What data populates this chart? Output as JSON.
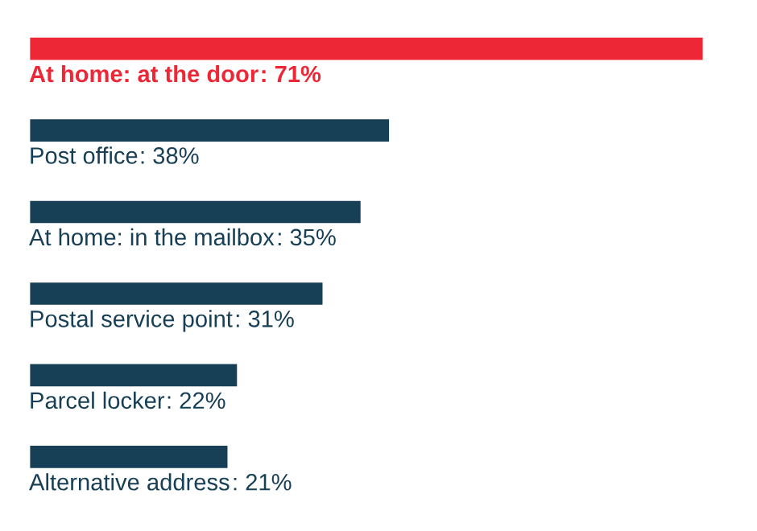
{
  "chart_data": {
    "type": "bar",
    "orientation": "horizontal",
    "categories": [
      "At home: at the door",
      "Post office",
      "At home: in the mailbox",
      "Postal service point",
      "Parcel locker",
      "Alternative address"
    ],
    "values": [
      71,
      38,
      35,
      31,
      22,
      21
    ],
    "value_labels": [
      ": 71%",
      ": 38%",
      ": 35%",
      ": 31%",
      ": 22%",
      ": 21%"
    ],
    "colors": [
      "#ee2737",
      "#173f55",
      "#173f55",
      "#173f55",
      "#173f55",
      "#173f55"
    ],
    "legend": false
  }
}
